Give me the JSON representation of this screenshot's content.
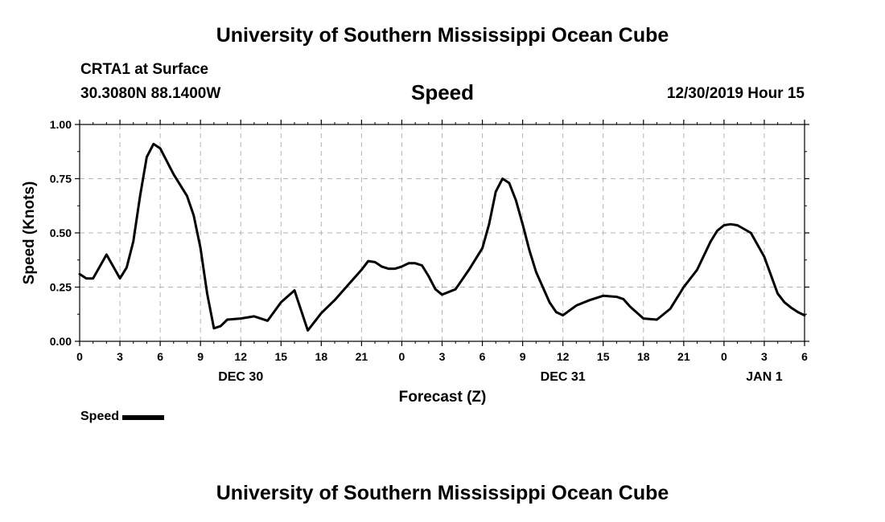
{
  "header": {
    "title": "University of Southern Mississippi Ocean Cube",
    "station": "CRTA1 at Surface",
    "coords": "30.3080N 88.1400W",
    "variable": "Speed",
    "timestamp": "12/30/2019 Hour 15"
  },
  "footer": {
    "title": "University of Southern Mississippi Ocean Cube"
  },
  "legend": {
    "label": "Speed"
  },
  "chart_data": {
    "type": "line",
    "title": "Speed",
    "xlabel": "Forecast (Z)",
    "ylabel": "Speed (Knots)",
    "ylim": [
      0,
      1
    ],
    "xlim": [
      0,
      54
    ],
    "grid": true,
    "y_ticks": [
      "0.00",
      "0.25",
      "0.50",
      "0.75",
      "1.00"
    ],
    "x_ticks": [
      "0",
      "3",
      "6",
      "9",
      "12",
      "15",
      "18",
      "21",
      "0",
      "3",
      "6",
      "9",
      "12",
      "15",
      "18",
      "21",
      "0",
      "3",
      "6"
    ],
    "date_labels": [
      {
        "label": "DEC 30",
        "at": 12
      },
      {
        "label": "DEC 31",
        "at": 36
      },
      {
        "label": "JAN 1",
        "at": 51
      }
    ],
    "series": [
      {
        "name": "Speed",
        "color": "#000000",
        "x": [
          0,
          0.5,
          1,
          2,
          3,
          3.5,
          4,
          4.5,
          5,
          5.5,
          6,
          7,
          8,
          8.5,
          9,
          9.5,
          10,
          10.5,
          11,
          12,
          13,
          14,
          15,
          16,
          17,
          18,
          19,
          20,
          21,
          21.5,
          22,
          22.5,
          23,
          23.5,
          24,
          24.5,
          25,
          25.5,
          26,
          26.5,
          27,
          28,
          29,
          30,
          30.5,
          31,
          31.5,
          32,
          32.5,
          33,
          33.5,
          34,
          35,
          35.5,
          36,
          37,
          38,
          39,
          40,
          40.5,
          41,
          42,
          43,
          44,
          45,
          46,
          47,
          47.5,
          48,
          48.5,
          49,
          50,
          51,
          52,
          52.5,
          53,
          53.5,
          54
        ],
        "y": [
          0.31,
          0.29,
          0.29,
          0.4,
          0.29,
          0.34,
          0.46,
          0.67,
          0.85,
          0.91,
          0.89,
          0.77,
          0.67,
          0.58,
          0.43,
          0.22,
          0.06,
          0.07,
          0.1,
          0.105,
          0.115,
          0.095,
          0.18,
          0.235,
          0.05,
          0.13,
          0.19,
          0.26,
          0.33,
          0.37,
          0.365,
          0.345,
          0.335,
          0.335,
          0.345,
          0.36,
          0.36,
          0.35,
          0.3,
          0.24,
          0.215,
          0.24,
          0.33,
          0.43,
          0.54,
          0.69,
          0.75,
          0.73,
          0.65,
          0.54,
          0.42,
          0.32,
          0.18,
          0.135,
          0.12,
          0.165,
          0.19,
          0.21,
          0.205,
          0.195,
          0.16,
          0.105,
          0.1,
          0.15,
          0.25,
          0.33,
          0.46,
          0.51,
          0.535,
          0.54,
          0.535,
          0.5,
          0.39,
          0.22,
          0.18,
          0.155,
          0.135,
          0.12
        ]
      }
    ]
  }
}
